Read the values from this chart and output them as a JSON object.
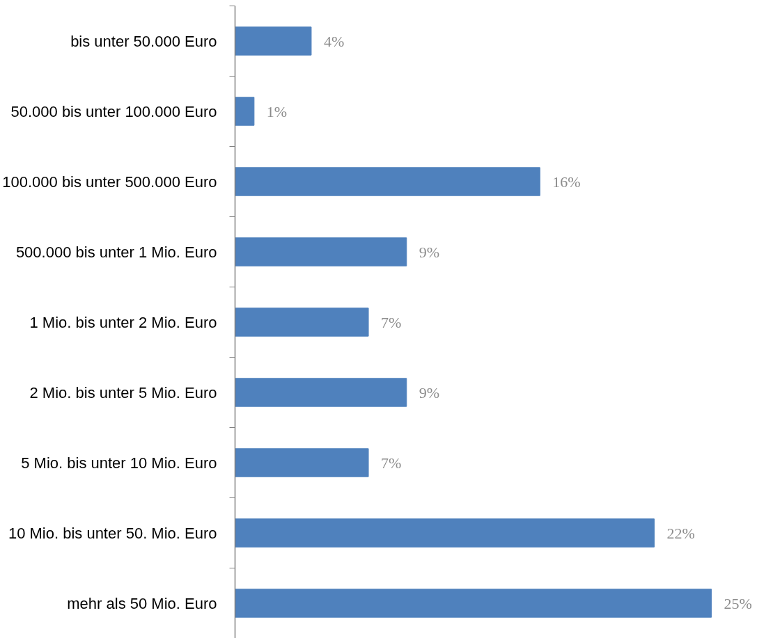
{
  "chart_data": {
    "type": "bar",
    "orientation": "horizontal",
    "categories": [
      "bis unter 50.000 Euro",
      "50.000 bis unter 100.000 Euro",
      "100.000 bis unter 500.000 Euro",
      "500.000 bis unter 1 Mio. Euro",
      "1 Mio. bis unter 2 Mio. Euro",
      "2 Mio. bis unter 5 Mio. Euro",
      "5 Mio. bis unter 10 Mio. Euro",
      "10 Mio. bis unter 50. Mio. Euro",
      "mehr als 50 Mio. Euro"
    ],
    "values": [
      4,
      1,
      16,
      9,
      7,
      9,
      7,
      22,
      25
    ],
    "value_labels": [
      "4%",
      "1%",
      "16%",
      "9%",
      "7%",
      "9%",
      "7%",
      "22%",
      "25%"
    ],
    "color": "#4f81bd"
  }
}
